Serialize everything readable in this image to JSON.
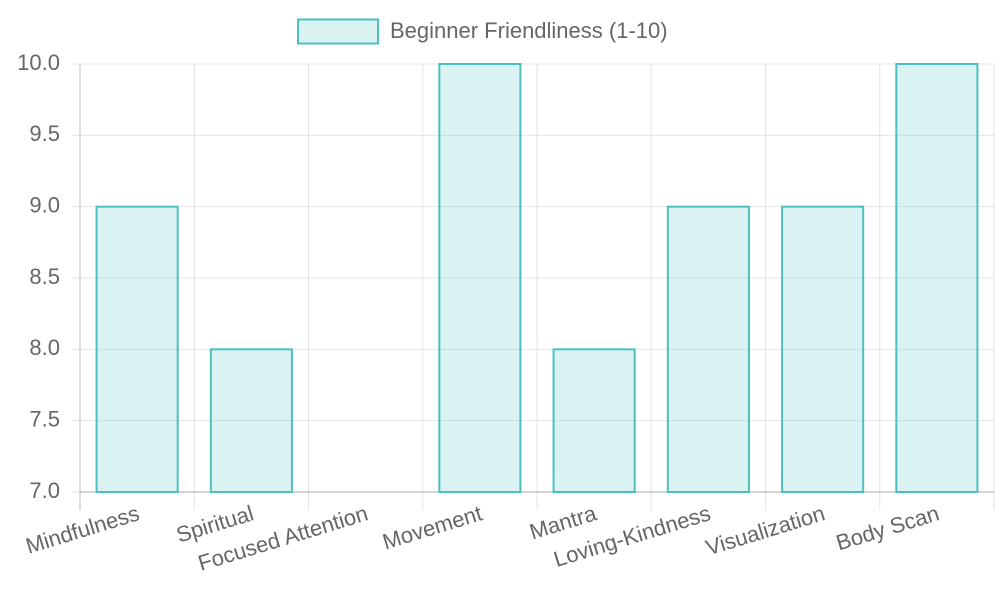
{
  "chart_data": {
    "type": "bar",
    "categories": [
      "Mindfulness",
      "Spiritual",
      "Focused Attention",
      "Movement",
      "Mantra",
      "Loving-Kindness",
      "Visualization",
      "Body Scan"
    ],
    "series": [
      {
        "name": "Beginner Friendliness (1-10)",
        "color": "#4bc0c0",
        "values": [
          9,
          8,
          7,
          10,
          8,
          9,
          9,
          10
        ]
      }
    ],
    "ylim": [
      7,
      10
    ],
    "yticks": [
      {
        "value": 7,
        "label": "7.0"
      },
      7.5,
      {
        "value": 8,
        "label": "8.0"
      },
      8.5,
      {
        "value": 9,
        "label": "9.0"
      },
      9.5,
      {
        "value": 10,
        "label": "10.0"
      }
    ],
    "grid": true,
    "legend": "top"
  }
}
